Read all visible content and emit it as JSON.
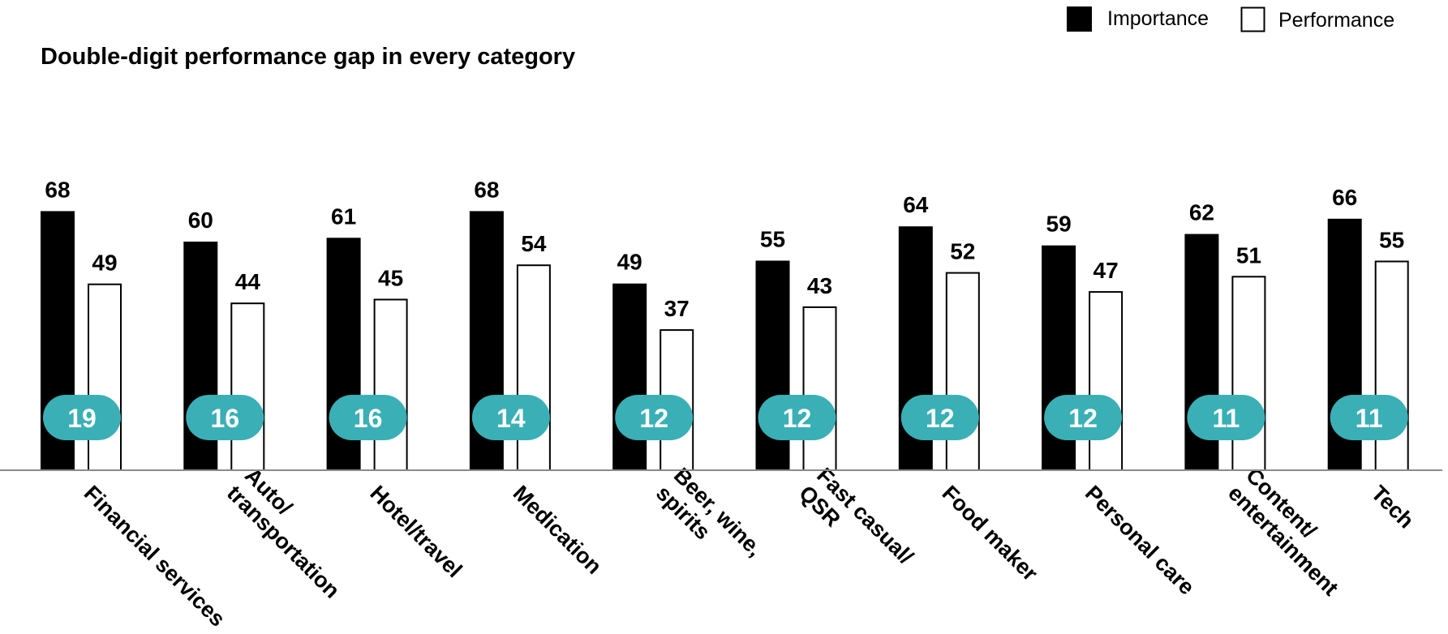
{
  "chart_data": {
    "type": "bar",
    "title": "Double-digit performance gap in every category",
    "categories": [
      [
        "Financial services"
      ],
      [
        "Auto/",
        "transportation"
      ],
      [
        "Hotel/travel"
      ],
      [
        "Medication"
      ],
      [
        "Beer, wine,",
        "spirits"
      ],
      [
        "Fast casual/",
        "QSR"
      ],
      [
        "Food maker"
      ],
      [
        "Personal care"
      ],
      [
        "Content/",
        "entertainment"
      ],
      [
        "Tech"
      ]
    ],
    "series": [
      {
        "name": "Importance",
        "color": "#000000",
        "values": [
          68,
          60,
          61,
          68,
          49,
          55,
          64,
          59,
          62,
          66
        ]
      },
      {
        "name": "Performance",
        "color": "#ffffff",
        "values": [
          49,
          44,
          45,
          54,
          37,
          43,
          52,
          47,
          51,
          55
        ]
      }
    ],
    "gap_values": [
      "19",
      "16",
      "16",
      "14",
      "12",
      "12",
      "12",
      "12",
      "11",
      "11"
    ],
    "gap_badge_color": "#3aafb6",
    "ylim": [
      0,
      75
    ],
    "grid": false,
    "legend_position": "top-right"
  }
}
